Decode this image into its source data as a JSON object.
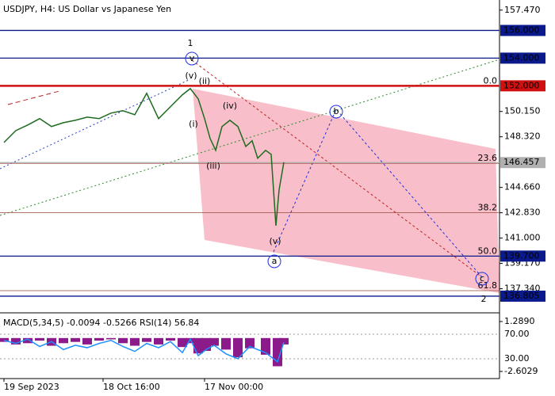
{
  "chart_data": [
    {
      "type": "line",
      "title": "USDJPY, H4:  US Dollar vs Japanese Yen",
      "xlim": [
        0,
        630
      ],
      "xticks": [
        {
          "value": 5,
          "label": "19 Sep 2023"
        },
        {
          "value": 130,
          "label": "18 Oct 16:00"
        },
        {
          "value": 258,
          "label": "17 Nov 00:00"
        }
      ],
      "ylim": [
        135.6,
        158.2
      ],
      "yticks": [
        {
          "value": 157.47,
          "label": "157.470"
        },
        {
          "value": 150.15,
          "label": "150.150"
        },
        {
          "value": 148.32,
          "label": "148.320"
        },
        {
          "value": 144.66,
          "label": "144.660"
        },
        {
          "value": 142.83,
          "label": "142.830"
        },
        {
          "value": 141,
          "label": "141.000"
        },
        {
          "value": 139.17,
          "label": "139.170"
        },
        {
          "value": 137.34,
          "label": "137.340"
        }
      ],
      "levels": [
        {
          "value": 156,
          "label": "156.000",
          "color": "#0a1a8c"
        },
        {
          "value": 154,
          "label": "154.000",
          "color": "#0a1a8c"
        },
        {
          "value": 152,
          "label": "152.000",
          "color": "#d01010"
        },
        {
          "value": 146.457,
          "label": "146.457",
          "color": "#b0b0b0"
        },
        {
          "value": 139.7,
          "label": "139.700",
          "color": "#0a1a8c"
        },
        {
          "value": 136.805,
          "label": "136.805",
          "color": "#0a1a8c"
        }
      ],
      "fib_levels": [
        {
          "value": 152,
          "label": "0.0"
        },
        {
          "value": 146.4,
          "label": "23.6"
        },
        {
          "value": 142.83,
          "label": "38.2"
        },
        {
          "value": 139.7,
          "label": "50.0"
        },
        {
          "value": 137.2,
          "label": "61.8"
        }
      ],
      "wave_labels": [
        "1",
        "v",
        "(v)",
        "(ii)",
        "(i)",
        "(iv)",
        "(iii)",
        "(v)",
        "a",
        "b",
        "c",
        "2"
      ],
      "series": [
        {
          "name": "USDJPY",
          "color": "#1f6b1f",
          "x": [
            5,
            20,
            35,
            50,
            65,
            80,
            95,
            110,
            125,
            140,
            155,
            170,
            185,
            200,
            215,
            230,
            240,
            250,
            258,
            265,
            272,
            280,
            290,
            300,
            310,
            318,
            325,
            335,
            342,
            348,
            352,
            358
          ],
          "values": [
            147.91,
            148.77,
            149.17,
            149.63,
            149.06,
            149.34,
            149.51,
            149.74,
            149.63,
            150.03,
            150.2,
            149.91,
            151.46,
            149.63,
            150.49,
            151.35,
            151.8,
            151.06,
            149.63,
            148.2,
            147.34,
            149.06,
            149.51,
            149.06,
            147.62,
            148.03,
            146.77,
            147.34,
            147.05,
            141.9,
            144.48,
            146.48
          ]
        }
      ]
    },
    {
      "type": "macd_rsi",
      "title": "MACD(5,34,5) -0.0094 -0.5266 RSI(14) 56.84",
      "xlim": [
        0,
        630
      ],
      "ylim": [
        -3.16,
        1.78
      ],
      "yticks": [
        {
          "value": 1.289,
          "label": "1.2890"
        },
        {
          "value": -2.6029,
          "label": "-2.6029"
        }
      ],
      "y2lim": [
        -2.3,
        101
      ],
      "y2ticks": [
        {
          "value": 70,
          "label": "70.00"
        },
        {
          "value": 30,
          "label": "30.00"
        }
      ],
      "x": [
        5,
        20,
        35,
        50,
        65,
        80,
        95,
        110,
        125,
        140,
        155,
        170,
        185,
        200,
        215,
        230,
        240,
        250,
        260,
        270,
        285,
        300,
        315,
        335,
        350,
        358
      ],
      "series": [
        {
          "name": "MACD",
          "color": "#8b1a8b",
          "values": [
            -0.3,
            -0.5,
            -0.4,
            -0.2,
            -0.6,
            -0.4,
            -0.3,
            -0.5,
            -0.2,
            -0.1,
            -0.4,
            -0.6,
            -0.3,
            -0.5,
            -0.2,
            -0.7,
            -0.4,
            -1.2,
            -1.0,
            -0.6,
            -0.9,
            -1.5,
            -0.8,
            -1.3,
            -2.2,
            -0.5
          ]
        },
        {
          "name": "RSI",
          "color": "#1e90ff",
          "axis": "y2",
          "values": [
            60,
            55,
            62,
            50,
            58,
            45,
            52,
            48,
            55,
            60,
            50,
            42,
            55,
            48,
            58,
            40,
            62,
            35,
            45,
            52,
            38,
            30,
            50,
            40,
            25,
            56.84
          ]
        }
      ]
    }
  ]
}
